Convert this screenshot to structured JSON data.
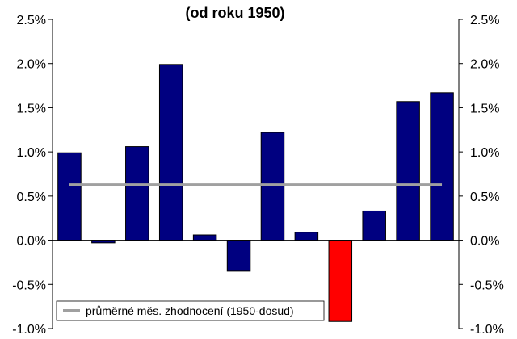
{
  "chart_data": {
    "type": "bar",
    "title": "(od roku 1950)",
    "categories": [
      "",
      "",
      "",
      "",
      "",
      "",
      "",
      "",
      "",
      "",
      "",
      ""
    ],
    "values": [
      0.99,
      -0.03,
      1.06,
      1.99,
      0.06,
      -0.35,
      1.22,
      0.09,
      -0.92,
      0.33,
      1.57,
      1.67
    ],
    "bar_colors": [
      "#000080",
      "#000080",
      "#000080",
      "#000080",
      "#000080",
      "#000080",
      "#000080",
      "#000080",
      "#FF0000",
      "#000080",
      "#000080",
      "#000080"
    ],
    "reference_line": {
      "name": "průměrné měs. zhodnocení (1950-dosud)",
      "value": 0.63,
      "color": "#A0A0A0"
    },
    "ylim": [
      -1.0,
      2.5
    ],
    "yticks": [
      2.5,
      2.0,
      1.5,
      1.0,
      0.5,
      0.0,
      -0.5,
      -1.0
    ],
    "ytick_labels": [
      "2.5%",
      "2.0%",
      "1.5%",
      "1.0%",
      "0.5%",
      "0.0%",
      "-0.5%",
      "-1.0%"
    ],
    "y_axis_both_sides": true,
    "grid": false,
    "legend_position": "bottom-left",
    "xlabel": "",
    "ylabel": ""
  }
}
